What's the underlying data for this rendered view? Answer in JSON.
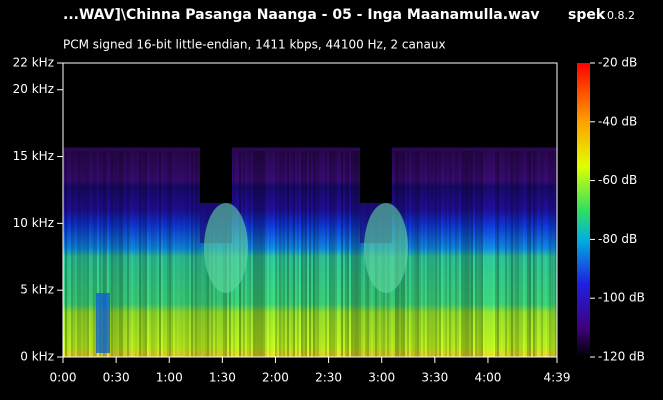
{
  "chart_data": {
    "type": "spectrogram",
    "title": "...WAV]\\Chinna Pasanga Naanga - 05 - Inga Maanamulla.wav",
    "app_name": "spek",
    "app_version": "0.8.2",
    "subtitle": "PCM signed 16-bit little-endian, 1411 kbps, 44100 Hz, 2 canaux",
    "xlim": [
      0,
      279
    ],
    "xticks": [
      {
        "value": 0,
        "label": "0:00"
      },
      {
        "value": 30,
        "label": "0:30"
      },
      {
        "value": 60,
        "label": "1:00"
      },
      {
        "value": 90,
        "label": "1:30"
      },
      {
        "value": 120,
        "label": "2:00"
      },
      {
        "value": 150,
        "label": "2:30"
      },
      {
        "value": 180,
        "label": "3:00"
      },
      {
        "value": 210,
        "label": "3:30"
      },
      {
        "value": 240,
        "label": "4:00"
      },
      {
        "value": 279,
        "label": "4:39"
      }
    ],
    "ylim": [
      0,
      22
    ],
    "yticks": [
      {
        "value": 0,
        "label": "0 kHz"
      },
      {
        "value": 5,
        "label": "5 kHz"
      },
      {
        "value": 10,
        "label": "10 kHz"
      },
      {
        "value": 15,
        "label": "15 kHz"
      },
      {
        "value": 20,
        "label": "20 kHz"
      },
      {
        "value": 22,
        "label": "22 kHz"
      }
    ],
    "zlim": [
      -120,
      -20
    ],
    "zticks": [
      {
        "value": -20,
        "label": "-20 dB"
      },
      {
        "value": -40,
        "label": "-40 dB"
      },
      {
        "value": -60,
        "label": "-60 dB"
      },
      {
        "value": -80,
        "label": "-80 dB"
      },
      {
        "value": -100,
        "label": "-100 dB"
      },
      {
        "value": -120,
        "label": "-120 dB"
      }
    ]
  }
}
